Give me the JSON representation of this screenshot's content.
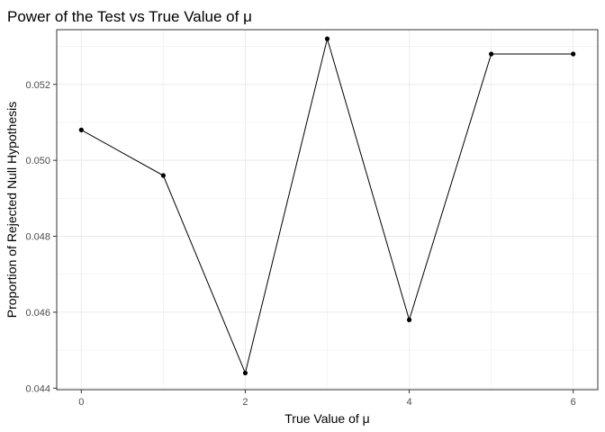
{
  "chart_data": {
    "type": "line",
    "title": "Power of the Test vs True Value of μ",
    "xlabel": "True Value of μ",
    "ylabel": "Proportion of Rejected Null Hypothesis",
    "x": [
      0,
      1,
      2,
      3,
      4,
      5,
      6
    ],
    "series": [
      {
        "values": [
          0.0508,
          0.0496,
          0.0444,
          0.0532,
          0.0458,
          0.0528,
          0.0528
        ]
      }
    ],
    "xlim": [
      -0.3,
      6.3
    ],
    "ylim": [
      0.04396,
      0.05344
    ],
    "x_ticks": [
      0,
      2,
      4,
      6
    ],
    "x_tick_labels": [
      "0",
      "2",
      "4",
      "6"
    ],
    "y_ticks": [
      0.044,
      0.046,
      0.048,
      0.05,
      0.052
    ],
    "y_tick_labels": [
      "0.044",
      "0.046",
      "0.048",
      "0.050",
      "0.052"
    ],
    "grid": true,
    "markers": true,
    "line_color": "#000000",
    "grid_color": "#ebebeb",
    "panel_border_color": "#333333"
  }
}
